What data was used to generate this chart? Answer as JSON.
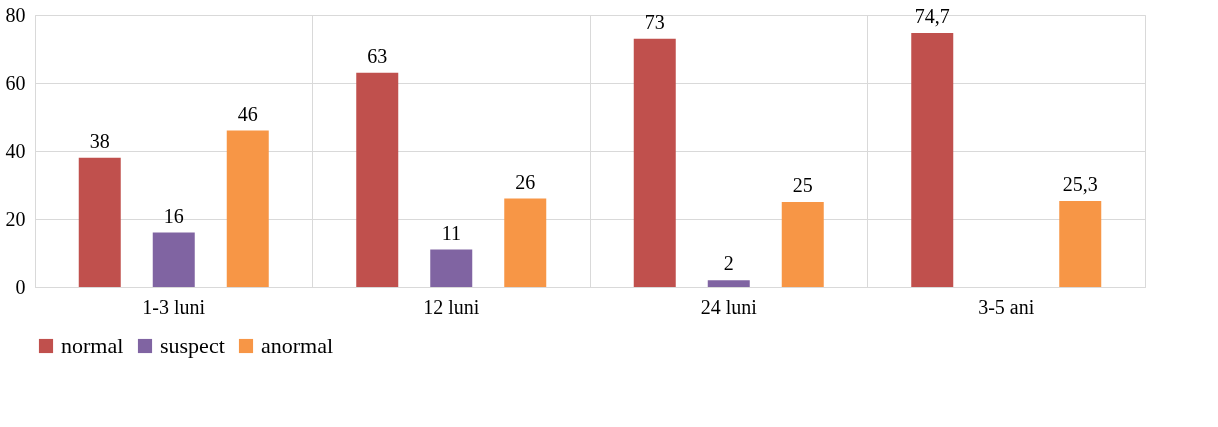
{
  "chart_data": {
    "type": "bar",
    "categories": [
      "1-3 luni",
      "12 luni",
      "24 luni",
      "3-5 ani"
    ],
    "series": [
      {
        "name": "normal",
        "color": "#c0504d",
        "values": [
          38,
          63,
          73,
          74.7
        ],
        "value_labels": [
          "38",
          "63",
          "73",
          "74,7"
        ]
      },
      {
        "name": "suspect",
        "color": "#8064a2",
        "values": [
          16,
          11,
          2,
          null
        ],
        "value_labels": [
          "16",
          "11",
          "2",
          null
        ]
      },
      {
        "name": "anormal",
        "color": "#f79646",
        "values": [
          46,
          26,
          25,
          25.3
        ],
        "value_labels": [
          "46",
          "26",
          "25",
          "25,3"
        ]
      }
    ],
    "ylim": [
      0,
      80
    ],
    "yticks": [
      0,
      20,
      40,
      60,
      80
    ],
    "grid": true,
    "legend": "bottom"
  }
}
